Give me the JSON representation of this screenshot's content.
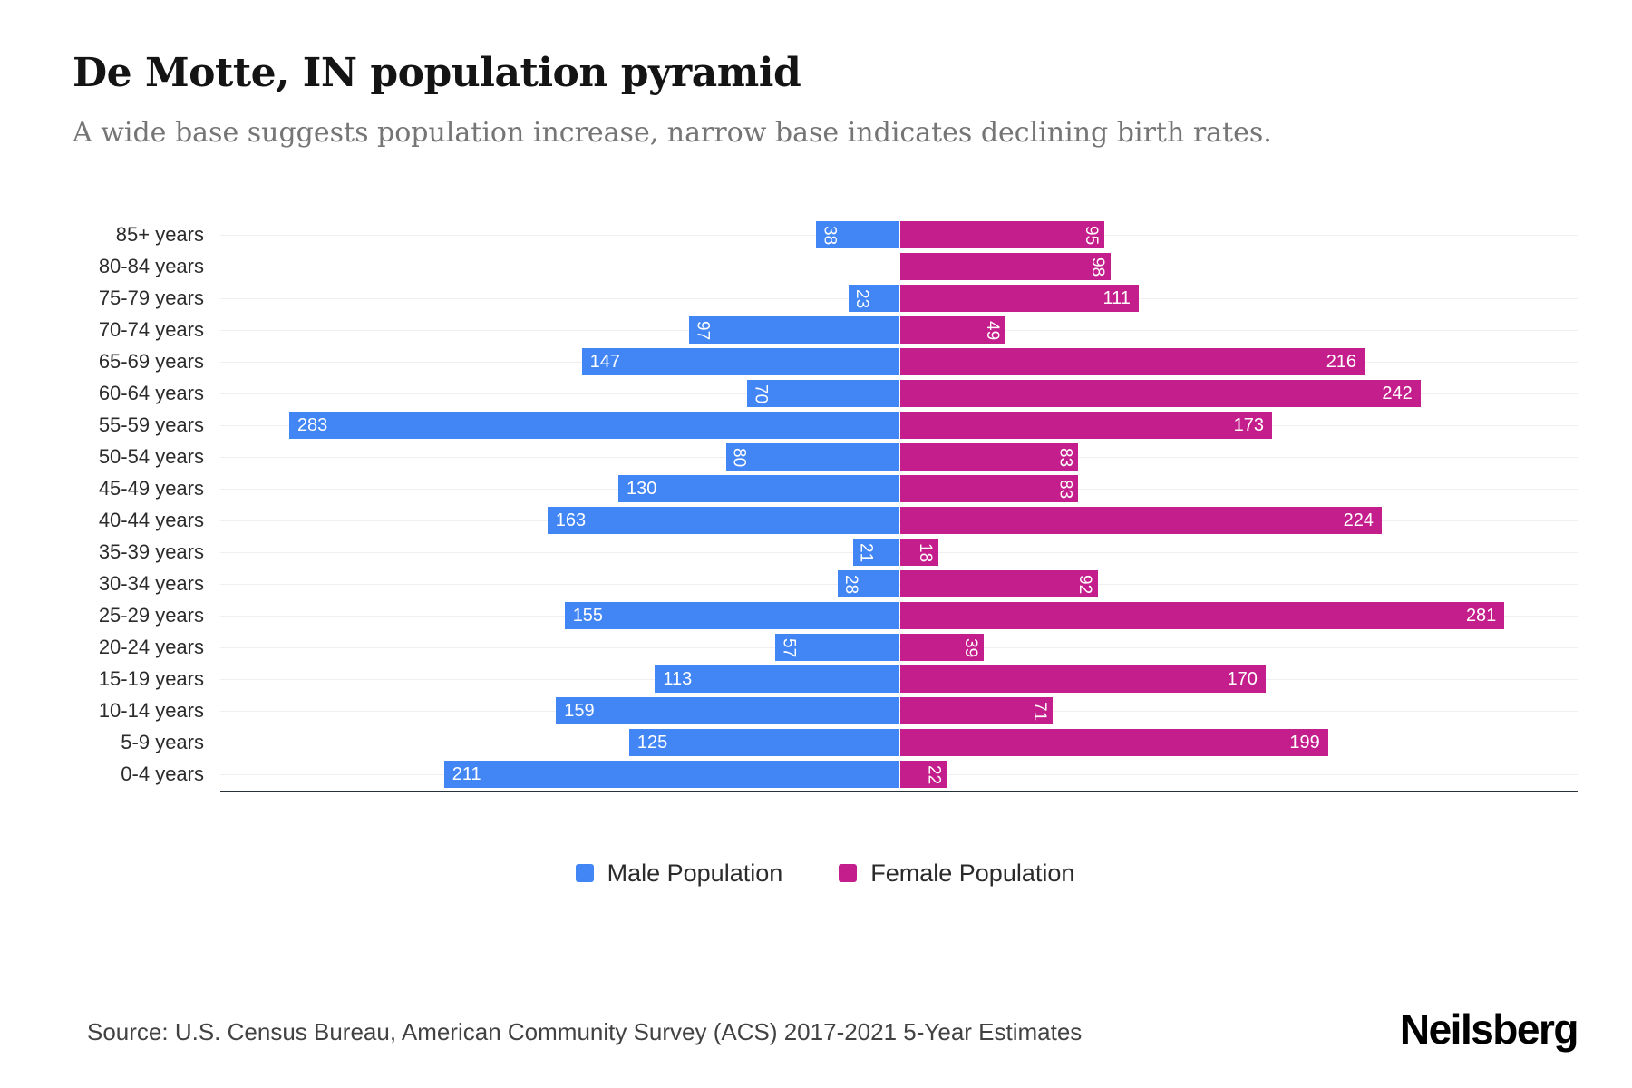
{
  "title": "De Motte, IN population pyramid",
  "subtitle": "A wide base suggests population increase, narrow base indicates declining birth rates.",
  "colors": {
    "male": "#4285F4",
    "female": "#C41E8C",
    "axis_line": "#263238",
    "gridline": "#efefef",
    "value_label": "#ffffff"
  },
  "legend": {
    "male_label": "Male Population",
    "female_label": "Female Population"
  },
  "footer": {
    "source": "Source: U.S. Census Bureau, American Community Survey (ACS) 2017-2021 5-Year Estimates",
    "brand": "Neilsberg"
  },
  "chart_data": {
    "type": "bar",
    "variant": "population-pyramid",
    "orientation": "horizontal",
    "grid": true,
    "legend_position": "bottom",
    "xlim_per_side": [
      0,
      315
    ],
    "categories": [
      "85+ years",
      "80-84 years",
      "75-79 years",
      "70-74 years",
      "65-69 years",
      "60-64 years",
      "55-59 years",
      "50-54 years",
      "45-49 years",
      "40-44 years",
      "35-39 years",
      "30-34 years",
      "25-29 years",
      "20-24 years",
      "15-19 years",
      "10-14 years",
      "5-9 years",
      "0-4 years"
    ],
    "series": [
      {
        "name": "Male Population",
        "side": "left",
        "values": [
          38,
          0,
          23,
          97,
          147,
          70,
          283,
          80,
          130,
          163,
          21,
          28,
          155,
          57,
          113,
          159,
          125,
          211
        ]
      },
      {
        "name": "Female Population",
        "side": "right",
        "values": [
          95,
          98,
          111,
          49,
          216,
          242,
          173,
          83,
          83,
          224,
          18,
          92,
          281,
          39,
          170,
          71,
          199,
          22
        ]
      }
    ]
  }
}
